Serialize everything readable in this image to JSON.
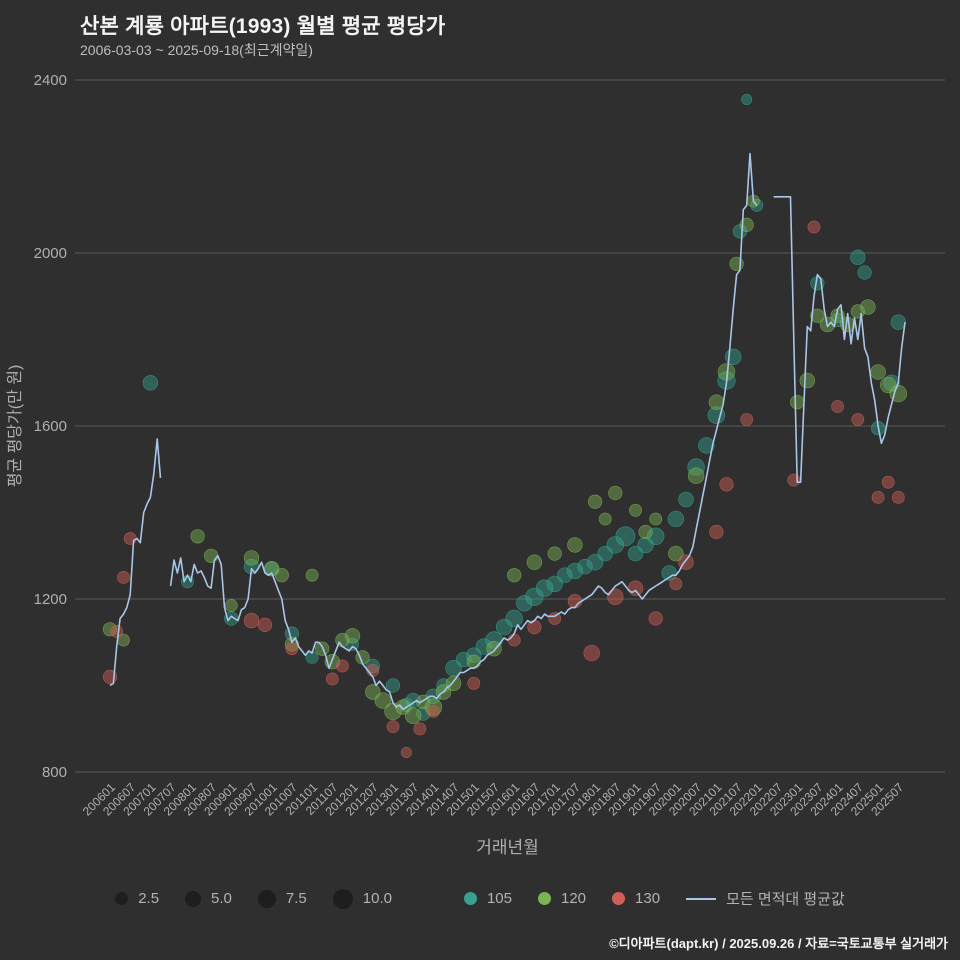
{
  "title": "산본 계룡 아파트(1993) 월별 평균 평당가",
  "subtitle": "2006-03-03 ~ 2025-09-18(최근계약일)",
  "footer": "©디아파트(dapt.kr) / 2025.09.26 / 자료=국토교통부 실거래가",
  "colors": {
    "background": "#2f2f2f",
    "grid": "#5a5a5a",
    "axis_text": "#b0b0b0",
    "title_text": "#f5f5f5",
    "teal": "#36a18f",
    "green": "#7cb454",
    "red": "#d05f57",
    "line": "#a9c6e8",
    "legend_bubble": "#1e1e1e"
  },
  "legend": {
    "sizes": [
      "2.5",
      "5.0",
      "7.5",
      "10.0"
    ]
  },
  "chart_data": {
    "type": "scatter",
    "title": "산본 계룡 아파트(1993) 월별 평균 평당가",
    "xlabel": "거래년월",
    "ylabel": "평균 평당가(만 원)",
    "ylim": [
      800,
      2400
    ],
    "yticks": [
      800,
      1200,
      1600,
      2000,
      2400
    ],
    "xticks": [
      "200601",
      "200607",
      "200701",
      "200707",
      "200801",
      "200807",
      "200901",
      "200907",
      "201001",
      "201007",
      "201101",
      "201107",
      "201201",
      "201207",
      "201301",
      "201307",
      "201401",
      "201407",
      "201501",
      "201507",
      "201601",
      "201607",
      "201701",
      "201707",
      "201801",
      "201807",
      "201901",
      "201907",
      "202001",
      "202007",
      "202101",
      "202107",
      "202201",
      "202207",
      "202301",
      "202307",
      "202401",
      "202407",
      "202501",
      "202507"
    ],
    "grid": true,
    "legend_position": "bottom",
    "line_series": {
      "name": "모든 면적대 평균값",
      "start": "200601",
      "monthly_values": [
        1000,
        1005,
        1090,
        1155,
        1165,
        1180,
        1210,
        1335,
        1340,
        1330,
        1400,
        1420,
        1435,
        1490,
        1570,
        1480,
        null,
        null,
        1230,
        1290,
        1260,
        1295,
        1240,
        1255,
        1240,
        1280,
        1260,
        1265,
        1250,
        1230,
        1225,
        1290,
        1300,
        1280,
        1180,
        1150,
        1160,
        1155,
        1150,
        1175,
        1180,
        1200,
        1270,
        1260,
        1270,
        1285,
        1260,
        1255,
        1260,
        1240,
        1220,
        1200,
        1150,
        1130,
        1100,
        1110,
        1090,
        1080,
        1070,
        1080,
        1075,
        1100,
        1100,
        1090,
        1070,
        1040,
        1060,
        1080,
        1100,
        1090,
        1085,
        1080,
        1090,
        1085,
        1070,
        1050,
        1040,
        1030,
        1020,
        1000,
        1010,
        1000,
        990,
        985,
        960,
        950,
        955,
        945,
        950,
        955,
        960,
        965,
        960,
        965,
        970,
        975,
        975,
        970,
        980,
        985,
        995,
        1000,
        1010,
        1020,
        1030,
        1030,
        1035,
        1040,
        1040,
        1045,
        1055,
        1060,
        1070,
        1075,
        1080,
        1090,
        1100,
        1110,
        1105,
        1110,
        1120,
        1140,
        1130,
        1140,
        1150,
        1145,
        1150,
        1160,
        1155,
        1165,
        1160,
        1160,
        1160,
        1165,
        1170,
        1165,
        1175,
        1180,
        1180,
        1190,
        1195,
        1200,
        1205,
        1210,
        1220,
        1230,
        1225,
        1215,
        1210,
        1220,
        1230,
        1235,
        1240,
        1230,
        1220,
        1215,
        1220,
        1210,
        1200,
        1210,
        1220,
        1225,
        1230,
        1235,
        1240,
        1245,
        1250,
        1255,
        1255,
        1265,
        1280,
        1290,
        1300,
        1320,
        1360,
        1400,
        1440,
        1480,
        1520,
        1560,
        1590,
        1620,
        1650,
        1700,
        1780,
        1870,
        1950,
        1960,
        2100,
        2110,
        2230,
        2120,
        2110,
        null,
        null,
        null,
        null,
        2130,
        2130,
        2130,
        2130,
        2130,
        2130,
        1800,
        1470,
        1470,
        1650,
        1830,
        1820,
        1900,
        1950,
        1940,
        1870,
        1830,
        1840,
        1830,
        1870,
        1880,
        1800,
        1860,
        1790,
        1850,
        1800,
        1860,
        1780,
        1760,
        1700,
        1660,
        1600,
        1560,
        1580,
        1620,
        1650,
        1680,
        1700,
        1780,
        1840
      ]
    },
    "bubble_series": [
      {
        "name": "105",
        "color": "#36a18f",
        "points": [
          [
            "200701",
            1700,
            4
          ],
          [
            "200712",
            1240,
            2
          ],
          [
            "200901",
            1155,
            3
          ],
          [
            "200907",
            1275,
            4
          ],
          [
            "201001",
            1270,
            3
          ],
          [
            "201007",
            1120,
            3
          ],
          [
            "201101",
            1065,
            2
          ],
          [
            "201201",
            1095,
            2
          ],
          [
            "201207",
            1045,
            3
          ],
          [
            "201301",
            1000,
            3
          ],
          [
            "201305",
            955,
            3
          ],
          [
            "201307",
            965,
            4
          ],
          [
            "201310",
            935,
            3
          ],
          [
            "201401",
            975,
            4
          ],
          [
            "201404",
            1000,
            3
          ],
          [
            "201407",
            1040,
            5
          ],
          [
            "201410",
            1060,
            4
          ],
          [
            "201501",
            1070,
            4
          ],
          [
            "201504",
            1090,
            5
          ],
          [
            "201507",
            1105,
            6
          ],
          [
            "201510",
            1135,
            5
          ],
          [
            "201601",
            1155,
            6
          ],
          [
            "201604",
            1190,
            5
          ],
          [
            "201607",
            1205,
            7
          ],
          [
            "201610",
            1225,
            6
          ],
          [
            "201701",
            1235,
            5
          ],
          [
            "201704",
            1255,
            4
          ],
          [
            "201707",
            1265,
            5
          ],
          [
            "201710",
            1275,
            4
          ],
          [
            "201801",
            1285,
            5
          ],
          [
            "201804",
            1305,
            4
          ],
          [
            "201807",
            1325,
            6
          ],
          [
            "201810",
            1345,
            9
          ],
          [
            "201901",
            1305,
            4
          ],
          [
            "201904",
            1325,
            5
          ],
          [
            "201907",
            1345,
            6
          ],
          [
            "201911",
            1260,
            4
          ],
          [
            "202001",
            1385,
            5
          ],
          [
            "202004",
            1430,
            4
          ],
          [
            "202007",
            1505,
            6
          ],
          [
            "202010",
            1555,
            5
          ],
          [
            "202101",
            1625,
            6
          ],
          [
            "202104",
            1705,
            7
          ],
          [
            "202106",
            1760,
            5
          ],
          [
            "202108",
            2050,
            3
          ],
          [
            "202110",
            2355,
            1
          ],
          [
            "202201",
            2110,
            2
          ],
          [
            "202307",
            1930,
            3
          ],
          [
            "202401",
            1845,
            3
          ],
          [
            "202407",
            1990,
            4
          ],
          [
            "202409",
            1955,
            3
          ],
          [
            "202501",
            1595,
            3
          ],
          [
            "202505",
            1700,
            5
          ],
          [
            "202507",
            1840,
            4
          ]
        ]
      },
      {
        "name": "120",
        "color": "#7cb454",
        "points": [
          [
            "200601",
            1130,
            3
          ],
          [
            "200605",
            1105,
            2
          ],
          [
            "200803",
            1345,
            3
          ],
          [
            "200807",
            1300,
            3
          ],
          [
            "200901",
            1185,
            2
          ],
          [
            "200907",
            1295,
            4
          ],
          [
            "201001",
            1270,
            4
          ],
          [
            "201004",
            1255,
            3
          ],
          [
            "201007",
            1095,
            3
          ],
          [
            "201101",
            1255,
            2
          ],
          [
            "201104",
            1085,
            3
          ],
          [
            "201107",
            1055,
            4
          ],
          [
            "201110",
            1105,
            3
          ],
          [
            "201201",
            1115,
            4
          ],
          [
            "201204",
            1065,
            3
          ],
          [
            "201207",
            985,
            4
          ],
          [
            "201210",
            965,
            5
          ],
          [
            "201301",
            940,
            6
          ],
          [
            "201304",
            950,
            4
          ],
          [
            "201307",
            930,
            5
          ],
          [
            "201310",
            962,
            3
          ],
          [
            "201401",
            950,
            6
          ],
          [
            "201404",
            985,
            4
          ],
          [
            "201407",
            1005,
            4
          ],
          [
            "201501",
            1055,
            3
          ],
          [
            "201507",
            1085,
            4
          ],
          [
            "201601",
            1255,
            3
          ],
          [
            "201607",
            1285,
            4
          ],
          [
            "201701",
            1305,
            3
          ],
          [
            "201707",
            1325,
            4
          ],
          [
            "201801",
            1425,
            3
          ],
          [
            "201804",
            1385,
            2
          ],
          [
            "201807",
            1445,
            3
          ],
          [
            "201901",
            1405,
            2
          ],
          [
            "201904",
            1355,
            3
          ],
          [
            "201907",
            1385,
            2
          ],
          [
            "202001",
            1305,
            4
          ],
          [
            "202007",
            1485,
            5
          ],
          [
            "202101",
            1655,
            4
          ],
          [
            "202104",
            1725,
            6
          ],
          [
            "202107",
            1975,
            3
          ],
          [
            "202110",
            2065,
            3
          ],
          [
            "202112",
            2120,
            2
          ],
          [
            "202301",
            1655,
            3
          ],
          [
            "202304",
            1705,
            4
          ],
          [
            "202307",
            1855,
            3
          ],
          [
            "202310",
            1835,
            4
          ],
          [
            "202401",
            1855,
            3
          ],
          [
            "202404",
            1835,
            4
          ],
          [
            "202407",
            1865,
            3
          ],
          [
            "202410",
            1875,
            4
          ],
          [
            "202501",
            1725,
            4
          ],
          [
            "202504",
            1695,
            5
          ],
          [
            "202507",
            1675,
            6
          ]
        ]
      },
      {
        "name": "130",
        "color": "#d05f57",
        "points": [
          [
            "200601",
            1020,
            3
          ],
          [
            "200603",
            1125,
            2
          ],
          [
            "200605",
            1250,
            2
          ],
          [
            "200607",
            1340,
            2
          ],
          [
            "200907",
            1150,
            4
          ],
          [
            "200911",
            1140,
            3
          ],
          [
            "201007",
            1085,
            2
          ],
          [
            "201107",
            1015,
            2
          ],
          [
            "201110",
            1045,
            2
          ],
          [
            "201207",
            1035,
            2
          ],
          [
            "201301",
            905,
            2
          ],
          [
            "201305",
            845,
            1
          ],
          [
            "201309",
            900,
            2
          ],
          [
            "201401",
            940,
            2
          ],
          [
            "201501",
            1005,
            2
          ],
          [
            "201601",
            1105,
            2
          ],
          [
            "201607",
            1135,
            3
          ],
          [
            "201701",
            1155,
            2
          ],
          [
            "201707",
            1195,
            3
          ],
          [
            "201712",
            1075,
            5
          ],
          [
            "201807",
            1205,
            5
          ],
          [
            "201901",
            1225,
            4
          ],
          [
            "201907",
            1155,
            3
          ],
          [
            "202001",
            1235,
            2
          ],
          [
            "202004",
            1285,
            4
          ],
          [
            "202101",
            1355,
            3
          ],
          [
            "202104",
            1465,
            3
          ],
          [
            "202110",
            1615,
            2
          ],
          [
            "202212",
            1475,
            2
          ],
          [
            "202306",
            2060,
            2
          ],
          [
            "202401",
            1645,
            2
          ],
          [
            "202407",
            1615,
            2
          ],
          [
            "202501",
            1435,
            2
          ],
          [
            "202504",
            1470,
            2
          ],
          [
            "202507",
            1435,
            2
          ]
        ]
      }
    ]
  }
}
